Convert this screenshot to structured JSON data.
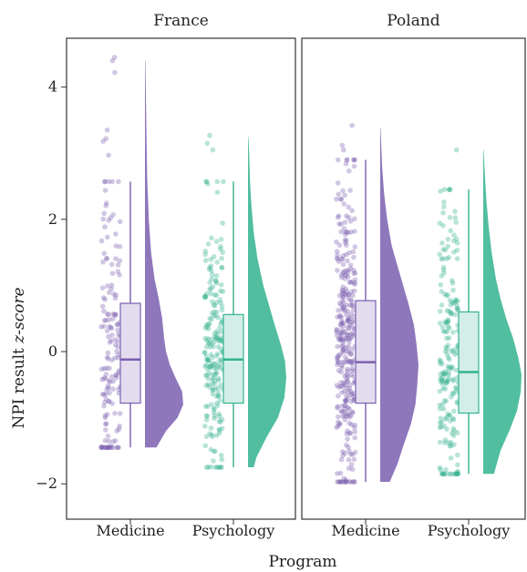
{
  "chart_data": {
    "type": "raincloud",
    "xlabel": "Program",
    "ylabel_prefix": "NPI result ",
    "ylabel_emphasis": "z-score",
    "ylim": [
      -2.3,
      4.7
    ],
    "yticks": [
      -2,
      0,
      2,
      4
    ],
    "ytick_labels": [
      "−2",
      "0",
      "2",
      "4"
    ],
    "categories": [
      "Medicine",
      "Psychology"
    ],
    "colors": {
      "Medicine": "#7b5fb0",
      "Psychology": "#33b38f"
    },
    "point_opacity": 0.35,
    "panels": [
      {
        "name": "France",
        "series": [
          {
            "name": "Medicine",
            "n_points": 150,
            "box": {
              "whisker_low": -1.45,
              "q1": -0.78,
              "median": -0.12,
              "q3": 0.73,
              "whisker_high": 2.57
            },
            "min": -1.45,
            "max": 4.4,
            "density": [
              [
                -1.45,
                0.3
              ],
              [
                -1.2,
                0.55
              ],
              [
                -1.0,
                0.85
              ],
              [
                -0.8,
                1.0
              ],
              [
                -0.6,
                0.97
              ],
              [
                -0.4,
                0.8
              ],
              [
                -0.2,
                0.65
              ],
              [
                0.0,
                0.55
              ],
              [
                0.2,
                0.5
              ],
              [
                0.5,
                0.45
              ],
              [
                0.8,
                0.36
              ],
              [
                1.1,
                0.25
              ],
              [
                1.5,
                0.16
              ],
              [
                2.0,
                0.1
              ],
              [
                2.6,
                0.06
              ],
              [
                3.2,
                0.04
              ],
              [
                3.8,
                0.025
              ],
              [
                4.4,
                0.01
              ]
            ],
            "outliers": [
              4.45,
              4.4,
              4.22,
              3.35,
              3.22,
              3.18,
              2.97
            ]
          },
          {
            "name": "Psychology",
            "n_points": 210,
            "box": {
              "whisker_low": -1.75,
              "q1": -0.78,
              "median": -0.12,
              "q3": 0.56,
              "whisker_high": 2.57
            },
            "min": -1.75,
            "max": 3.25,
            "density": [
              [
                -1.75,
                0.15
              ],
              [
                -1.6,
                0.22
              ],
              [
                -1.3,
                0.48
              ],
              [
                -1.0,
                0.78
              ],
              [
                -0.7,
                0.95
              ],
              [
                -0.4,
                1.0
              ],
              [
                -0.15,
                0.97
              ],
              [
                0.1,
                0.86
              ],
              [
                0.4,
                0.7
              ],
              [
                0.7,
                0.55
              ],
              [
                1.0,
                0.4
              ],
              [
                1.4,
                0.25
              ],
              [
                1.8,
                0.15
              ],
              [
                2.2,
                0.09
              ],
              [
                2.6,
                0.05
              ],
              [
                3.0,
                0.03
              ],
              [
                3.25,
                0.01
              ]
            ],
            "outliers": [
              3.27,
              3.15,
              3.05
            ]
          }
        ]
      },
      {
        "name": "Poland",
        "series": [
          {
            "name": "Medicine",
            "n_points": 330,
            "box": {
              "whisker_low": -1.97,
              "q1": -0.78,
              "median": -0.16,
              "q3": 0.77,
              "whisker_high": 2.9
            },
            "min": -1.97,
            "max": 3.38,
            "density": [
              [
                -1.97,
                0.25
              ],
              [
                -1.7,
                0.45
              ],
              [
                -1.4,
                0.62
              ],
              [
                -1.1,
                0.8
              ],
              [
                -0.8,
                0.92
              ],
              [
                -0.5,
                0.97
              ],
              [
                -0.2,
                1.0
              ],
              [
                0.1,
                0.95
              ],
              [
                0.4,
                0.88
              ],
              [
                0.7,
                0.75
              ],
              [
                1.0,
                0.6
              ],
              [
                1.3,
                0.45
              ],
              [
                1.6,
                0.3
              ],
              [
                2.0,
                0.18
              ],
              [
                2.4,
                0.1
              ],
              [
                2.8,
                0.05
              ],
              [
                3.38,
                0.01
              ]
            ],
            "outliers": [
              3.42,
              3.12,
              3.05
            ]
          },
          {
            "name": "Psychology",
            "n_points": 200,
            "box": {
              "whisker_low": -1.85,
              "q1": -0.93,
              "median": -0.31,
              "q3": 0.6,
              "whisker_high": 2.45
            },
            "min": -1.85,
            "max": 3.05,
            "density": [
              [
                -1.85,
                0.28
              ],
              [
                -1.5,
                0.45
              ],
              [
                -1.2,
                0.68
              ],
              [
                -0.9,
                0.88
              ],
              [
                -0.6,
                0.98
              ],
              [
                -0.35,
                1.0
              ],
              [
                -0.1,
                0.92
              ],
              [
                0.2,
                0.78
              ],
              [
                0.5,
                0.6
              ],
              [
                0.8,
                0.45
              ],
              [
                1.1,
                0.33
              ],
              [
                1.5,
                0.22
              ],
              [
                1.9,
                0.14
              ],
              [
                2.3,
                0.08
              ],
              [
                2.7,
                0.04
              ],
              [
                3.05,
                0.01
              ]
            ],
            "outliers": [
              3.05
            ]
          }
        ]
      }
    ]
  }
}
